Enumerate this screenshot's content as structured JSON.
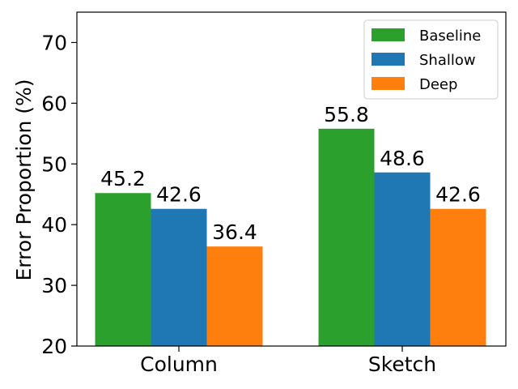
{
  "chart_data": {
    "type": "bar",
    "title": "",
    "xlabel": "",
    "ylabel": "Error Proportion (%)",
    "categories": [
      "Column",
      "Sketch"
    ],
    "series": [
      {
        "name": "Baseline",
        "values": [
          45.2,
          55.8
        ],
        "color": "#2ca02c"
      },
      {
        "name": "Shallow",
        "values": [
          42.6,
          48.6
        ],
        "color": "#1f77b4"
      },
      {
        "name": "Deep",
        "values": [
          36.4,
          42.6
        ],
        "color": "#ff7f0e"
      }
    ],
    "data_labels": [
      [
        "45.2",
        "55.8"
      ],
      [
        "42.6",
        "48.6"
      ],
      [
        "36.4",
        "42.6"
      ]
    ],
    "ylim": [
      20,
      75
    ],
    "yticks": [
      20,
      30,
      40,
      50,
      60,
      70
    ],
    "ytick_labels": [
      "20",
      "30",
      "40",
      "50",
      "60",
      "70"
    ],
    "grid": false,
    "legend_position": "top-right"
  }
}
